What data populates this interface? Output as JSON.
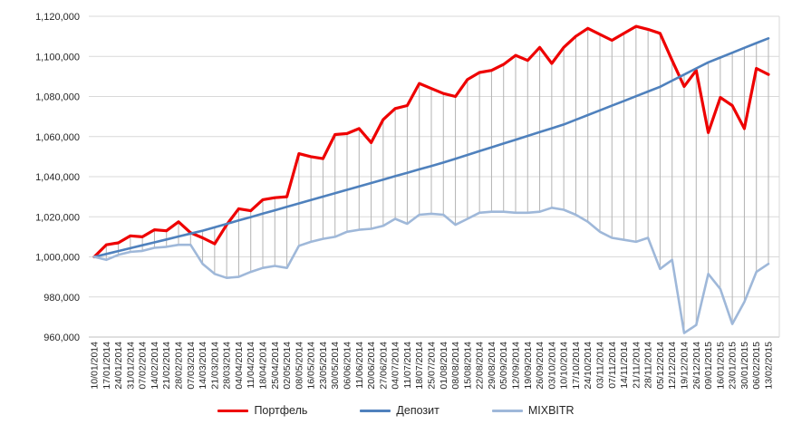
{
  "chart_data": {
    "type": "line",
    "title": "",
    "xlabel": "",
    "ylabel": "",
    "ylim": [
      960000,
      1120000
    ],
    "y_tick_step": 20000,
    "y_ticks": [
      "1,120,000",
      "1,100,000",
      "1,080,000",
      "1,060,000",
      "1,040,000",
      "1,020,000",
      "1,000,000",
      "980,000",
      "960,000"
    ],
    "grid": "horizontal",
    "high_low_lines": true,
    "legend_position": "bottom",
    "categories": [
      "10/01/2014",
      "17/01/2014",
      "24/01/2014",
      "31/01/2014",
      "07/02/2014",
      "14/02/2014",
      "21/02/2014",
      "28/02/2014",
      "07/03/2014",
      "14/03/2014",
      "21/03/2014",
      "28/03/2014",
      "04/04/2014",
      "11/04/2014",
      "18/04/2014",
      "25/04/2014",
      "02/05/2014",
      "08/05/2014",
      "16/05/2014",
      "23/05/2014",
      "30/05/2014",
      "06/06/2014",
      "11/06/2014",
      "20/06/2014",
      "27/06/2014",
      "04/07/2014",
      "11/07/2014",
      "18/07/2014",
      "25/07/2014",
      "01/08/2014",
      "08/08/2014",
      "15/08/2014",
      "22/08/2014",
      "29/08/2014",
      "05/09/2014",
      "12/09/2014",
      "19/09/2014",
      "26/09/2014",
      "03/10/2014",
      "10/10/2014",
      "17/10/2014",
      "24/10/2014",
      "03/11/2014",
      "07/11/2014",
      "14/11/2014",
      "21/11/2014",
      "28/11/2014",
      "05/12/2014",
      "12/12/2014",
      "19/12/2014",
      "26/12/2014",
      "09/01/2015",
      "16/01/2015",
      "23/01/2015",
      "30/01/2015",
      "06/02/2015",
      "13/02/2015"
    ],
    "series": [
      {
        "name": "Портфель",
        "color": "#ee0000",
        "stroke_width": 3.2,
        "values": [
          1000000,
          1006000,
          1007000,
          1010500,
          1010000,
          1013500,
          1013000,
          1017500,
          1012000,
          1009500,
          1006500,
          1016000,
          1024000,
          1023000,
          1028500,
          1029500,
          1030000,
          1051500,
          1050000,
          1049000,
          1061000,
          1061500,
          1064000,
          1057000,
          1068500,
          1074000,
          1075500,
          1086500,
          1084000,
          1081500,
          1080000,
          1088500,
          1092000,
          1093000,
          1096000,
          1100500,
          1098000,
          1104500,
          1096500,
          1104500,
          1110000,
          1114000,
          1111000,
          1108000,
          1111500,
          1115000,
          1113500,
          1111500,
          1098000,
          1085000,
          1093000,
          1062000,
          1079500,
          1075500,
          1064000,
          1094000,
          1091000
        ]
      },
      {
        "name": "Депозит",
        "color": "#4f81bd",
        "stroke_width": 2.6,
        "values": [
          1000000,
          1001450,
          1002900,
          1004350,
          1005800,
          1007250,
          1008700,
          1010150,
          1011600,
          1013050,
          1014750,
          1016450,
          1018150,
          1019850,
          1021550,
          1023250,
          1024950,
          1026650,
          1028350,
          1030050,
          1031750,
          1033450,
          1035150,
          1036850,
          1038550,
          1040250,
          1041950,
          1043650,
          1045350,
          1047050,
          1048950,
          1050850,
          1052750,
          1054650,
          1056550,
          1058450,
          1060350,
          1062250,
          1064150,
          1066050,
          1068400,
          1070750,
          1073100,
          1075450,
          1077800,
          1080150,
          1082500,
          1084850,
          1087900,
          1090950,
          1094000,
          1097050,
          1099450,
          1101850,
          1104250,
          1106650,
          1109000
        ]
      },
      {
        "name": "MIXBITR",
        "color": "#9fb8d9",
        "stroke_width": 2.6,
        "values": [
          1000000,
          998500,
          1001000,
          1002500,
          1003000,
          1004500,
          1005000,
          1006000,
          1006000,
          996500,
          991500,
          989500,
          990000,
          992500,
          994500,
          995500,
          994500,
          1005500,
          1007500,
          1009000,
          1010000,
          1012500,
          1013500,
          1014000,
          1015500,
          1019000,
          1016500,
          1021000,
          1021500,
          1021000,
          1016000,
          1019000,
          1022000,
          1022500,
          1022500,
          1022000,
          1022000,
          1022500,
          1024500,
          1023500,
          1021000,
          1017500,
          1012500,
          1009500,
          1008500,
          1007500,
          1009500,
          994000,
          998500,
          962000,
          966000,
          991500,
          984000,
          966500,
          977500,
          992500,
          996500
        ]
      }
    ],
    "colors": {
      "gridline": "#d9d9d9",
      "axis_line": "#bfbfbf",
      "high_low": "#b3b3b3",
      "plot_border": "#d9d9d9",
      "axis_text": "#262626"
    }
  },
  "legend": {
    "items": [
      {
        "label": "Портфель"
      },
      {
        "label": "Депозит"
      },
      {
        "label": "MIXBITR"
      }
    ]
  }
}
